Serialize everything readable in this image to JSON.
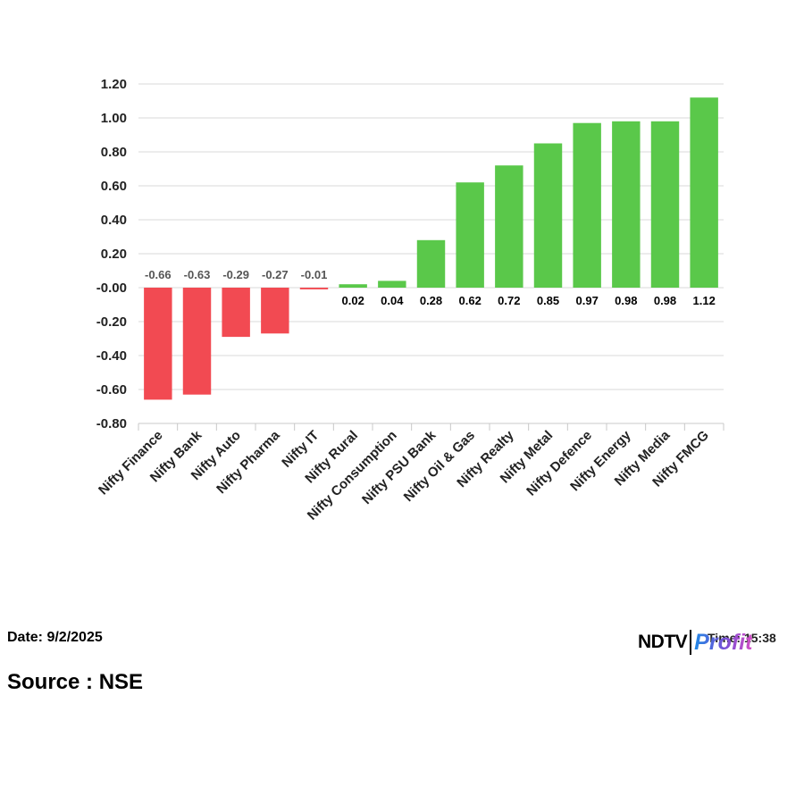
{
  "chart_data": {
    "type": "bar",
    "title": "",
    "xlabel": "",
    "ylabel": "",
    "categories": [
      "Nifty Finance",
      "Nifty Bank",
      "Nifty Auto",
      "Nifty Pharma",
      "Nifty IT",
      "Nifty Rural",
      "Nifty Consumption",
      "Nifty PSU Bank",
      "Nifty Oil & Gas",
      "Nifty Realty",
      "Nifty Metal",
      "Nifty Defence",
      "Nifty Energy",
      "Nifty Media",
      "Nifty FMCG"
    ],
    "values": [
      -0.66,
      -0.63,
      -0.29,
      -0.27,
      -0.01,
      0.02,
      0.04,
      0.28,
      0.62,
      0.72,
      0.85,
      0.97,
      0.98,
      0.98,
      1.12
    ],
    "value_labels": [
      "-0.66",
      "-0.63",
      "-0.29",
      "-0.27",
      "-0.01",
      "0.02",
      "0.04",
      "0.28",
      "0.62",
      "0.72",
      "0.85",
      "0.97",
      "0.98",
      "0.98",
      "1.12"
    ],
    "ylim": [
      -0.8,
      1.2
    ],
    "yticks": [
      -0.8,
      -0.6,
      -0.4,
      -0.2,
      0.0,
      0.2,
      0.4,
      0.6,
      0.8,
      1.0,
      1.2
    ],
    "ytick_labels": [
      "-0.80",
      "-0.60",
      "-0.40",
      "-0.20",
      "-0.00",
      "0.20",
      "0.40",
      "0.60",
      "0.80",
      "1.00",
      "1.20"
    ],
    "grid": true,
    "legend": "none",
    "colors": {
      "positive": "#5ac84a",
      "negative": "#f24a52",
      "grid": "#d9d9d9",
      "axis": "#c8c8c8",
      "negative_label": "#555555",
      "positive_label": "#000000"
    }
  },
  "footer": {
    "date": "Date: 9/2/2025",
    "source": "Source : NSE",
    "time": "Time: 15:38"
  },
  "logo": {
    "ndtv": "NDTV",
    "profit": "Profit"
  }
}
